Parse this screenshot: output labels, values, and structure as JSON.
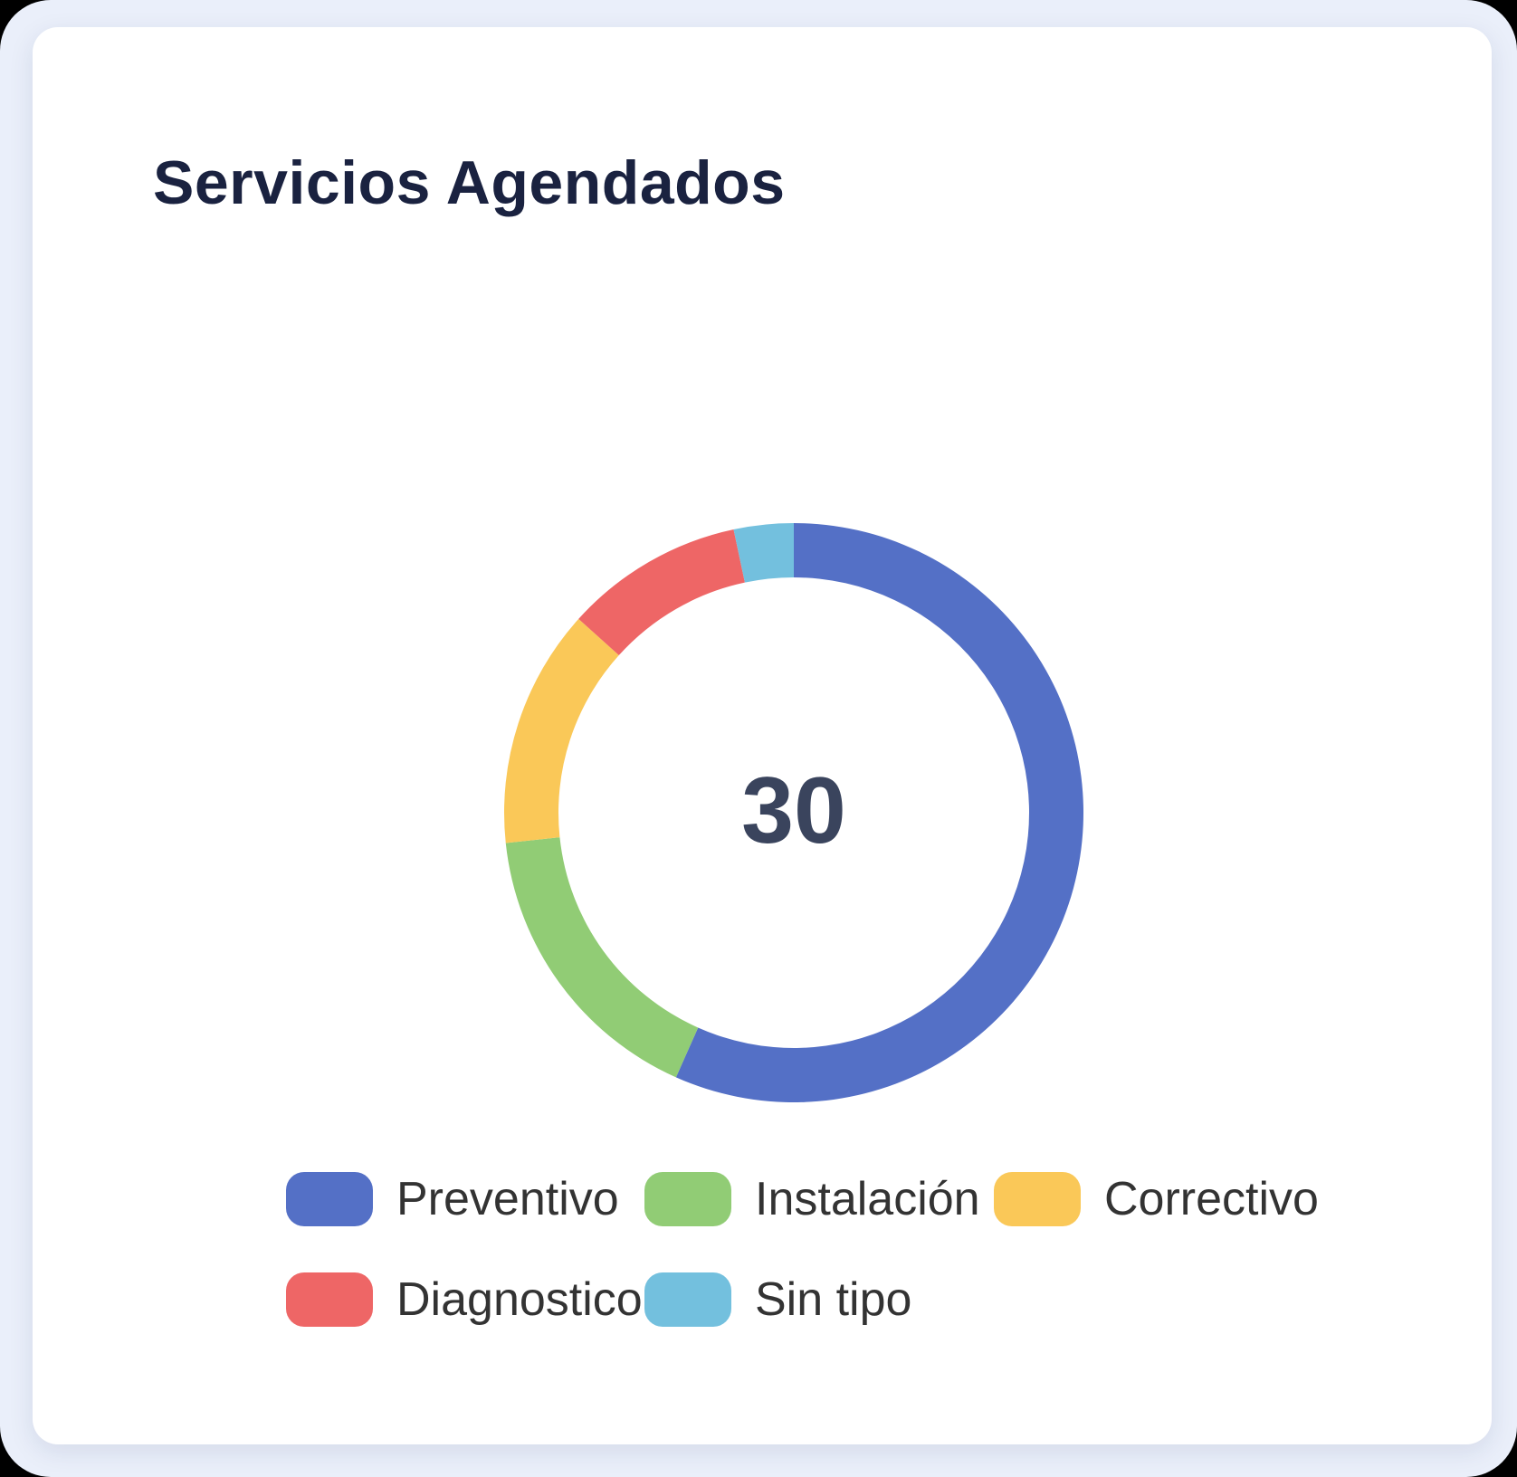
{
  "card": {
    "title": "Servicios Agendados"
  },
  "chart_data": {
    "type": "pie",
    "subtype": "donut",
    "title": "Servicios Agendados",
    "center_total": "30",
    "total": 30,
    "series": [
      {
        "name": "Preventivo",
        "value": 17,
        "color": "#5470c6"
      },
      {
        "name": "Instalación",
        "value": 5,
        "color": "#91cc75"
      },
      {
        "name": "Correctivo",
        "value": 4,
        "color": "#fac858"
      },
      {
        "name": "Diagnostico",
        "value": 3,
        "color": "#ee6666"
      },
      {
        "name": "Sin tipo",
        "value": 1,
        "color": "#73c0de"
      }
    ],
    "start_angle": "top",
    "direction": "clockwise",
    "legend_position": "bottom",
    "colors": {
      "page_background": "#eaeffa",
      "card_background": "#ffffff",
      "title_text": "#1a2240",
      "center_text": "#3a445d",
      "legend_text": "#333333"
    }
  }
}
